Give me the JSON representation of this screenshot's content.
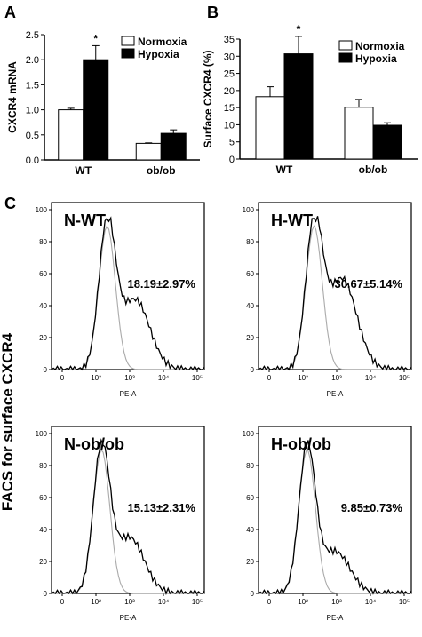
{
  "panels": {
    "a_letter": "A",
    "b_letter": "B",
    "c_letter": "C"
  },
  "colors": {
    "normoxia": "#ffffff",
    "hypoxia": "#000000",
    "normoxia_hist": "#aaaaaa",
    "hypoxia_hist": "#000000"
  },
  "side_label": "FACS for surface CXCR4",
  "chart_data": [
    {
      "type": "bar",
      "panel": "A",
      "categories": [
        "WT",
        "ob/ob"
      ],
      "series": [
        {
          "name": "Normoxia",
          "values": [
            1.0,
            0.33
          ],
          "errors": [
            0.03,
            0.01
          ]
        },
        {
          "name": "Hypoxia",
          "values": [
            2.0,
            0.53
          ],
          "errors": [
            0.28,
            0.07
          ]
        }
      ],
      "ylabel": "CXCR4 mRNA",
      "ylim": [
        0,
        2.5
      ],
      "yticks": [
        "0.0",
        "0.5",
        "1.0",
        "1.5",
        "2.0",
        "2.5"
      ],
      "significance": [
        {
          "category": "WT",
          "series": "Hypoxia",
          "mark": "*"
        }
      ],
      "legend": "top-right"
    },
    {
      "type": "bar",
      "panel": "B",
      "categories": [
        "WT",
        "ob/ob"
      ],
      "series": [
        {
          "name": "Normoxia",
          "values": [
            18.2,
            15.1
          ],
          "errors": [
            2.9,
            2.3
          ]
        },
        {
          "name": "Hypoxia",
          "values": [
            30.7,
            9.85
          ],
          "errors": [
            5.1,
            0.73
          ]
        }
      ],
      "ylabel": "Surface CXCR4 (%)",
      "ylim": [
        0,
        35
      ],
      "yticks": [
        "0",
        "5",
        "10",
        "15",
        "20",
        "25",
        "30",
        "35"
      ],
      "significance": [
        {
          "category": "WT",
          "series": "Hypoxia",
          "mark": "*"
        }
      ],
      "legend": "top-right"
    },
    {
      "type": "line",
      "panel": "C",
      "subplots": [
        {
          "title": "N-WT",
          "percent": "18.19±2.97%",
          "xlabel": "PE-A",
          "peak_hypoxia_like": 2.0,
          "tail": 1.0
        },
        {
          "title": "H-WT",
          "percent": "30.67±5.14%",
          "xlabel": "PE-A",
          "peak_hypoxia_like": 2.0,
          "tail": 1.3
        },
        {
          "title": "N-ob/ob",
          "percent": "15.13±2.31%",
          "xlabel": "PE-A",
          "peak_hypoxia_like": 1.8,
          "tail": 0.8
        },
        {
          "title": "H-ob/ob",
          "percent": "9.85±0.73%",
          "xlabel": "PE-A",
          "peak_hypoxia_like": 1.75,
          "tail": 0.6
        }
      ],
      "yticks": [
        "0",
        "20",
        "40",
        "60",
        "80",
        "100"
      ],
      "ylim": [
        0,
        100
      ],
      "xticks": [
        "0",
        "10²",
        "10³",
        "10⁴",
        "10⁵"
      ]
    }
  ]
}
